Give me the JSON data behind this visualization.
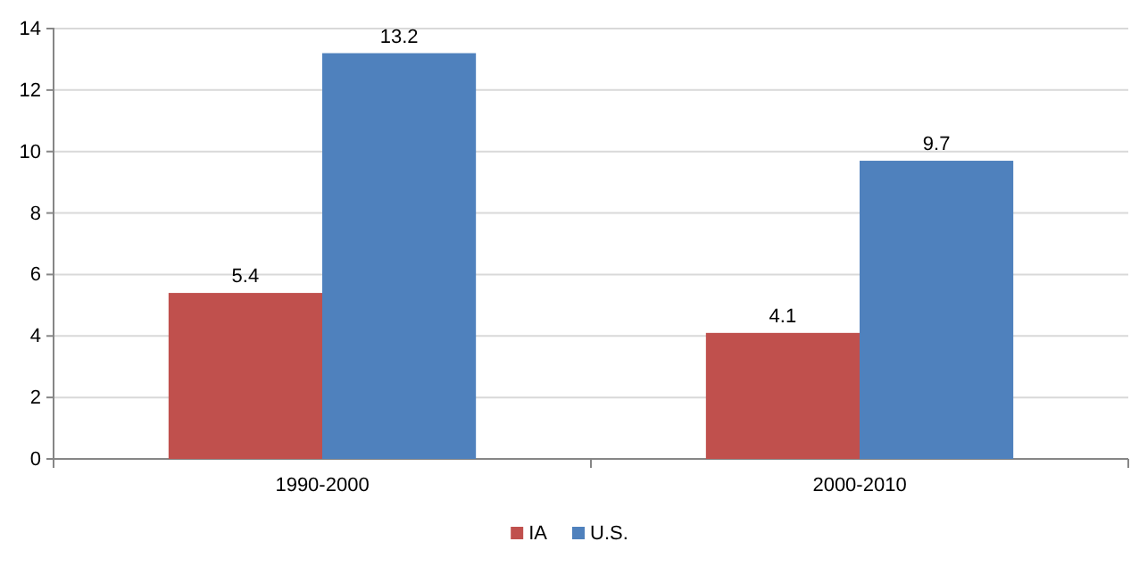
{
  "chart_data": {
    "type": "bar",
    "categories": [
      "1990-2000",
      "2000-2010"
    ],
    "series": [
      {
        "name": "IA",
        "color": "#c0504d",
        "values": [
          5.4,
          4.1
        ]
      },
      {
        "name": "U.S.",
        "color": "#4f81bd",
        "values": [
          13.2,
          9.7
        ]
      }
    ],
    "ylim": [
      0,
      14
    ],
    "yticks": [
      0,
      2,
      4,
      6,
      8,
      10,
      12,
      14
    ],
    "grid": "y",
    "legend": "bottom",
    "data_labels": true
  }
}
